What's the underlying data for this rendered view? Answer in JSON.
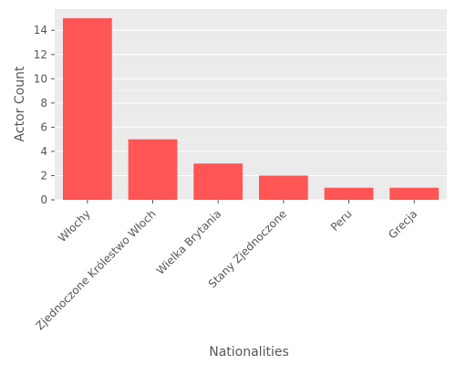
{
  "chart_data": {
    "type": "bar",
    "title": "",
    "xlabel": "Nationalities",
    "ylabel": "Actor Count",
    "categories": [
      "Włochy",
      "Zjednoczone Królestwo Włoch",
      "Wielka Brytania",
      "Stany Zjednoczone",
      "Peru",
      "Grecja"
    ],
    "values": [
      15,
      5,
      3,
      2,
      1,
      1
    ],
    "y_ticks": [
      "0",
      "2",
      "4",
      "6",
      "8",
      "10",
      "12",
      "14"
    ],
    "ylim": [
      0,
      15.75
    ],
    "grid": true,
    "legend": "none",
    "bar_color": "#ff5555",
    "background_color": "#ebebeb",
    "grid_color": "#ffffff"
  }
}
